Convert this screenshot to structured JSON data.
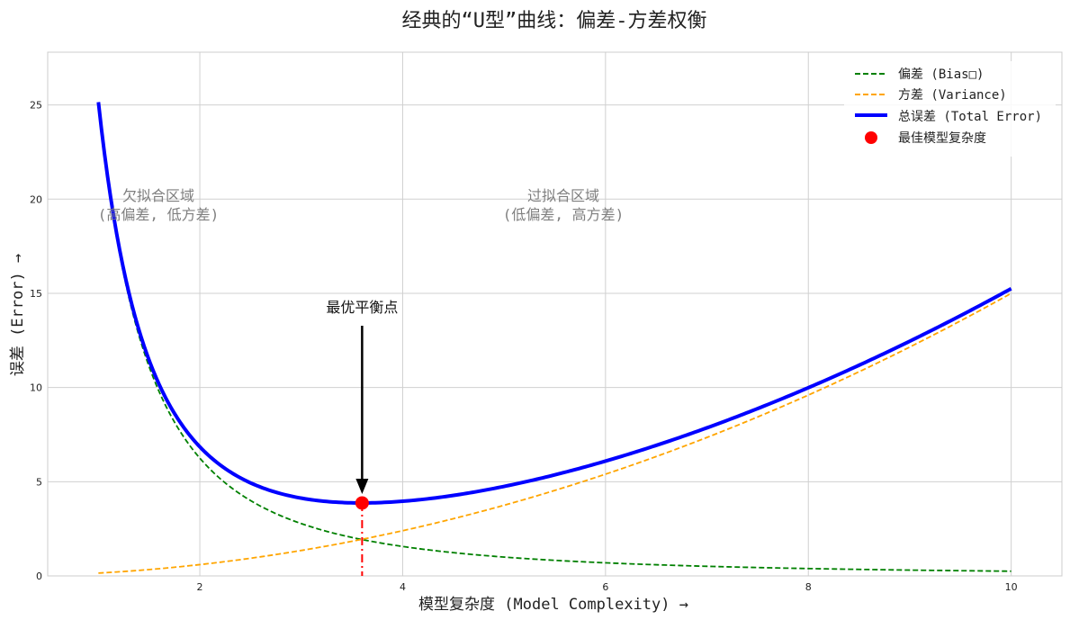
{
  "chart_data": {
    "type": "line",
    "title": "经典的“U型”曲线：偏差-方差权衡",
    "xlabel": "模型复杂度 (Model Complexity) →",
    "ylabel": "误差 (Error) →",
    "xlim": [
      0.5,
      10.5
    ],
    "ylim": [
      0,
      27.8
    ],
    "xticks": [
      2,
      4,
      6,
      8,
      10
    ],
    "yticks": [
      0,
      5,
      10,
      15,
      20,
      25
    ],
    "grid": true,
    "legend_position": "top-right",
    "colors": {
      "bias": "#008000",
      "variance": "#ffa500",
      "total": "#0000ff",
      "optimal": "#ff0000"
    },
    "series": [
      {
        "name": "偏差 (Bias□)",
        "style": "dashed",
        "color": "#008000",
        "x": [
          1,
          1.25,
          1.5,
          1.75,
          2,
          2.5,
          3,
          3.5,
          3.6,
          4,
          5,
          6,
          7,
          8,
          9,
          10
        ],
        "y": [
          25,
          16.0,
          11.1,
          8.16,
          6.25,
          4.0,
          2.78,
          2.04,
          1.93,
          1.56,
          1.0,
          0.69,
          0.51,
          0.39,
          0.31,
          0.25
        ]
      },
      {
        "name": "方差 (Variance)",
        "style": "dashed",
        "color": "#ffa500",
        "x": [
          1,
          1.25,
          1.5,
          1.75,
          2,
          2.5,
          3,
          3.5,
          3.6,
          4,
          5,
          6,
          7,
          8,
          9,
          10
        ],
        "y": [
          0.15,
          0.23,
          0.34,
          0.46,
          0.6,
          0.94,
          1.35,
          1.84,
          1.94,
          2.4,
          3.75,
          5.4,
          7.35,
          9.6,
          12.15,
          15.0
        ]
      },
      {
        "name": "总误差 (Total Error)",
        "style": "solid",
        "color": "#0000ff",
        "x": [
          1,
          1.25,
          1.5,
          1.75,
          2,
          2.5,
          3,
          3.5,
          3.6,
          4,
          5,
          6,
          7,
          8,
          9,
          10
        ],
        "y": [
          25.15,
          16.23,
          11.45,
          8.62,
          6.85,
          4.94,
          4.13,
          3.88,
          3.87,
          3.96,
          4.75,
          6.09,
          7.86,
          9.99,
          12.46,
          15.25
        ]
      }
    ],
    "optimal_point": {
      "name": "最佳模型复杂度",
      "x": 3.6,
      "y": 3.87
    },
    "annotations": {
      "optimal": "最优平衡点",
      "underfit_line1": "欠拟合区域",
      "underfit_line2": "(高偏差, 低方差)",
      "overfit_line1": "过拟合区域",
      "overfit_line2": "(低偏差, 高方差)"
    }
  }
}
